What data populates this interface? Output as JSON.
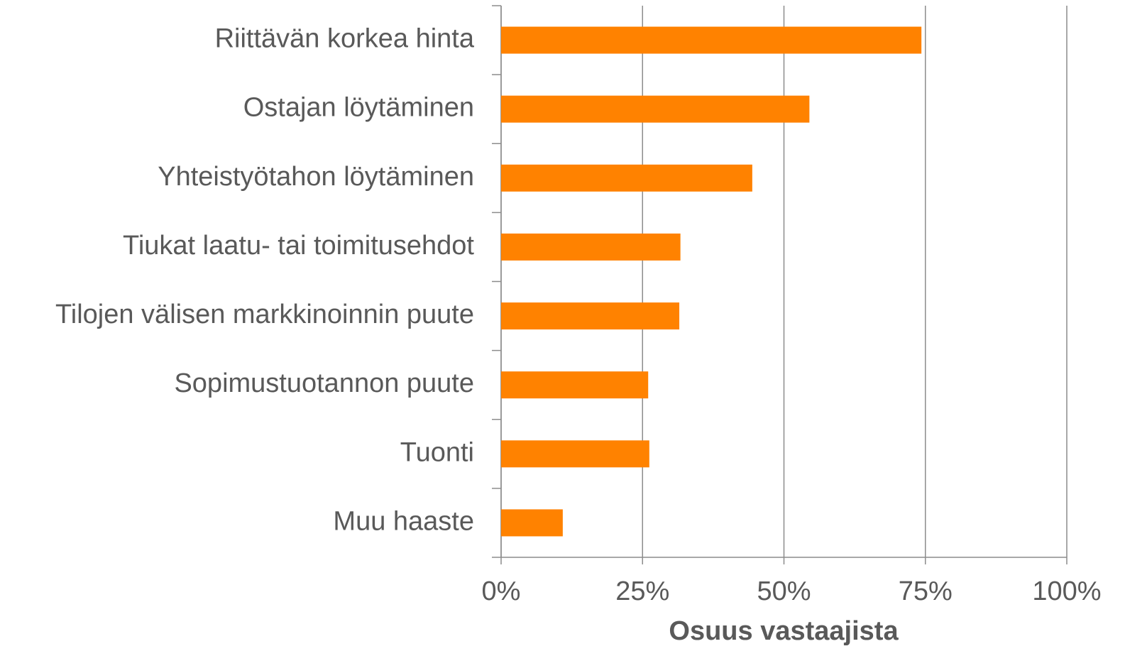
{
  "chart_data": {
    "type": "barh",
    "xlabel": "Osuus vastaajista",
    "categories": [
      "Riittävän korkea hinta",
      "Ostajan löytäminen",
      "Yhteistyötahon löytäminen",
      "Tiukat laatu- tai toimitusehdot",
      "Tilojen välisen markkinoinnin puute",
      "Sopimustuotannon puute",
      "Tuonti",
      "Muu haaste"
    ],
    "values": [
      74.3,
      54.5,
      44.4,
      31.7,
      31.5,
      26.0,
      26.2,
      10.9
    ],
    "color": "#ff8200",
    "xlim": [
      0,
      100
    ],
    "xticks": [
      {
        "value": 0,
        "label": "0%"
      },
      {
        "value": 25,
        "label": "25%"
      },
      {
        "value": 50,
        "label": "50%"
      },
      {
        "value": 75,
        "label": "75%"
      },
      {
        "value": 100,
        "label": "100%"
      }
    ],
    "grid": true
  }
}
